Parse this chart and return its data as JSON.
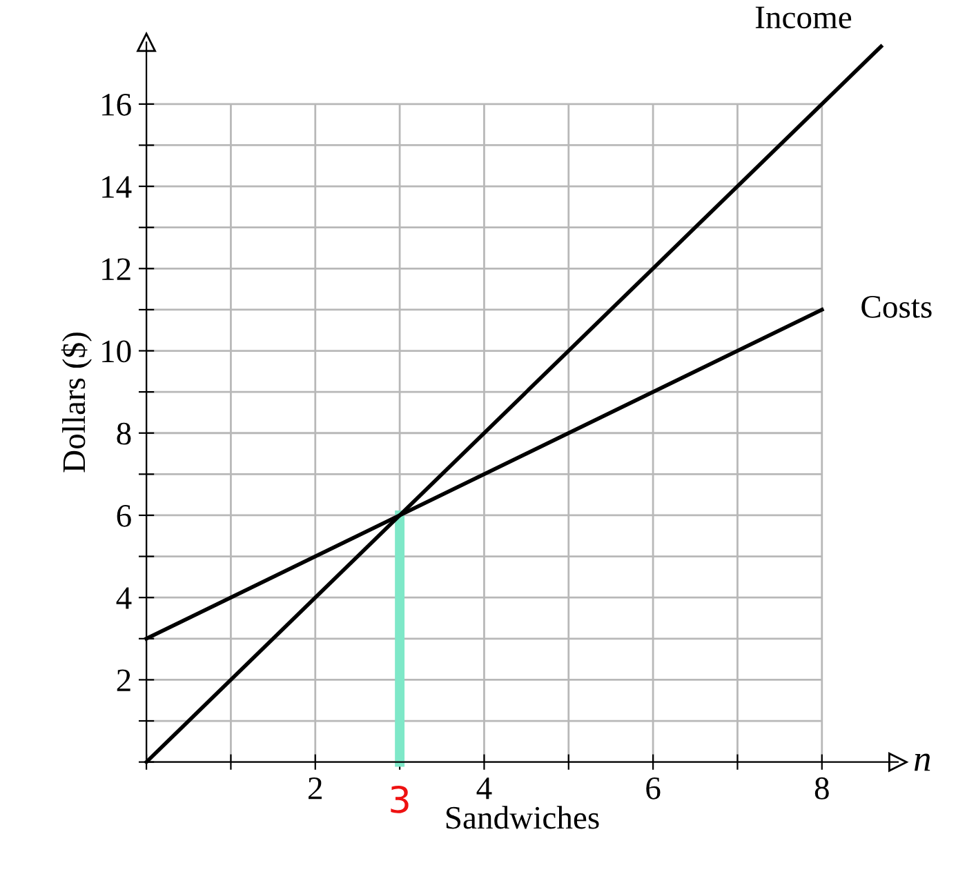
{
  "chart_data": {
    "type": "line",
    "xlabel": "Sandwiches",
    "ylabel": "Dollars ($)",
    "annotations": [
      "n",
      {
        "text": "3",
        "x": 3,
        "y": 0
      }
    ],
    "series": [
      {
        "name": "Income",
        "color": "#000000",
        "x": [
          0,
          8.7
        ],
        "values": [
          0,
          17.4
        ]
      },
      {
        "name": "Costs",
        "color": "#000000",
        "x": [
          0,
          8
        ],
        "values": [
          3,
          11
        ]
      },
      {
        "color": "#7ee8c8",
        "x": [
          3,
          3
        ],
        "values": [
          0,
          6
        ]
      }
    ],
    "xlim": [
      0,
      8.9
    ],
    "ylim": [
      0,
      17.5
    ],
    "xticks": [
      {
        "value": 0,
        "label": null
      },
      {
        "value": 1,
        "label": null
      },
      2,
      {
        "value": 3,
        "label": null
      },
      4,
      {
        "value": 5,
        "label": null
      },
      6,
      {
        "value": 7,
        "label": null
      },
      8
    ],
    "yticks": [
      {
        "value": 0,
        "label": null
      },
      {
        "value": 1,
        "label": null
      },
      2,
      {
        "value": 3,
        "label": null
      },
      4,
      {
        "value": 5,
        "label": null
      },
      6,
      {
        "value": 7,
        "label": null
      },
      8,
      {
        "value": 9,
        "label": null
      },
      10,
      {
        "value": 11,
        "label": null
      },
      12,
      {
        "value": 13,
        "label": null
      },
      14,
      {
        "value": 15,
        "label": null
      },
      16
    ],
    "grid": true,
    "line_style": "solid"
  }
}
